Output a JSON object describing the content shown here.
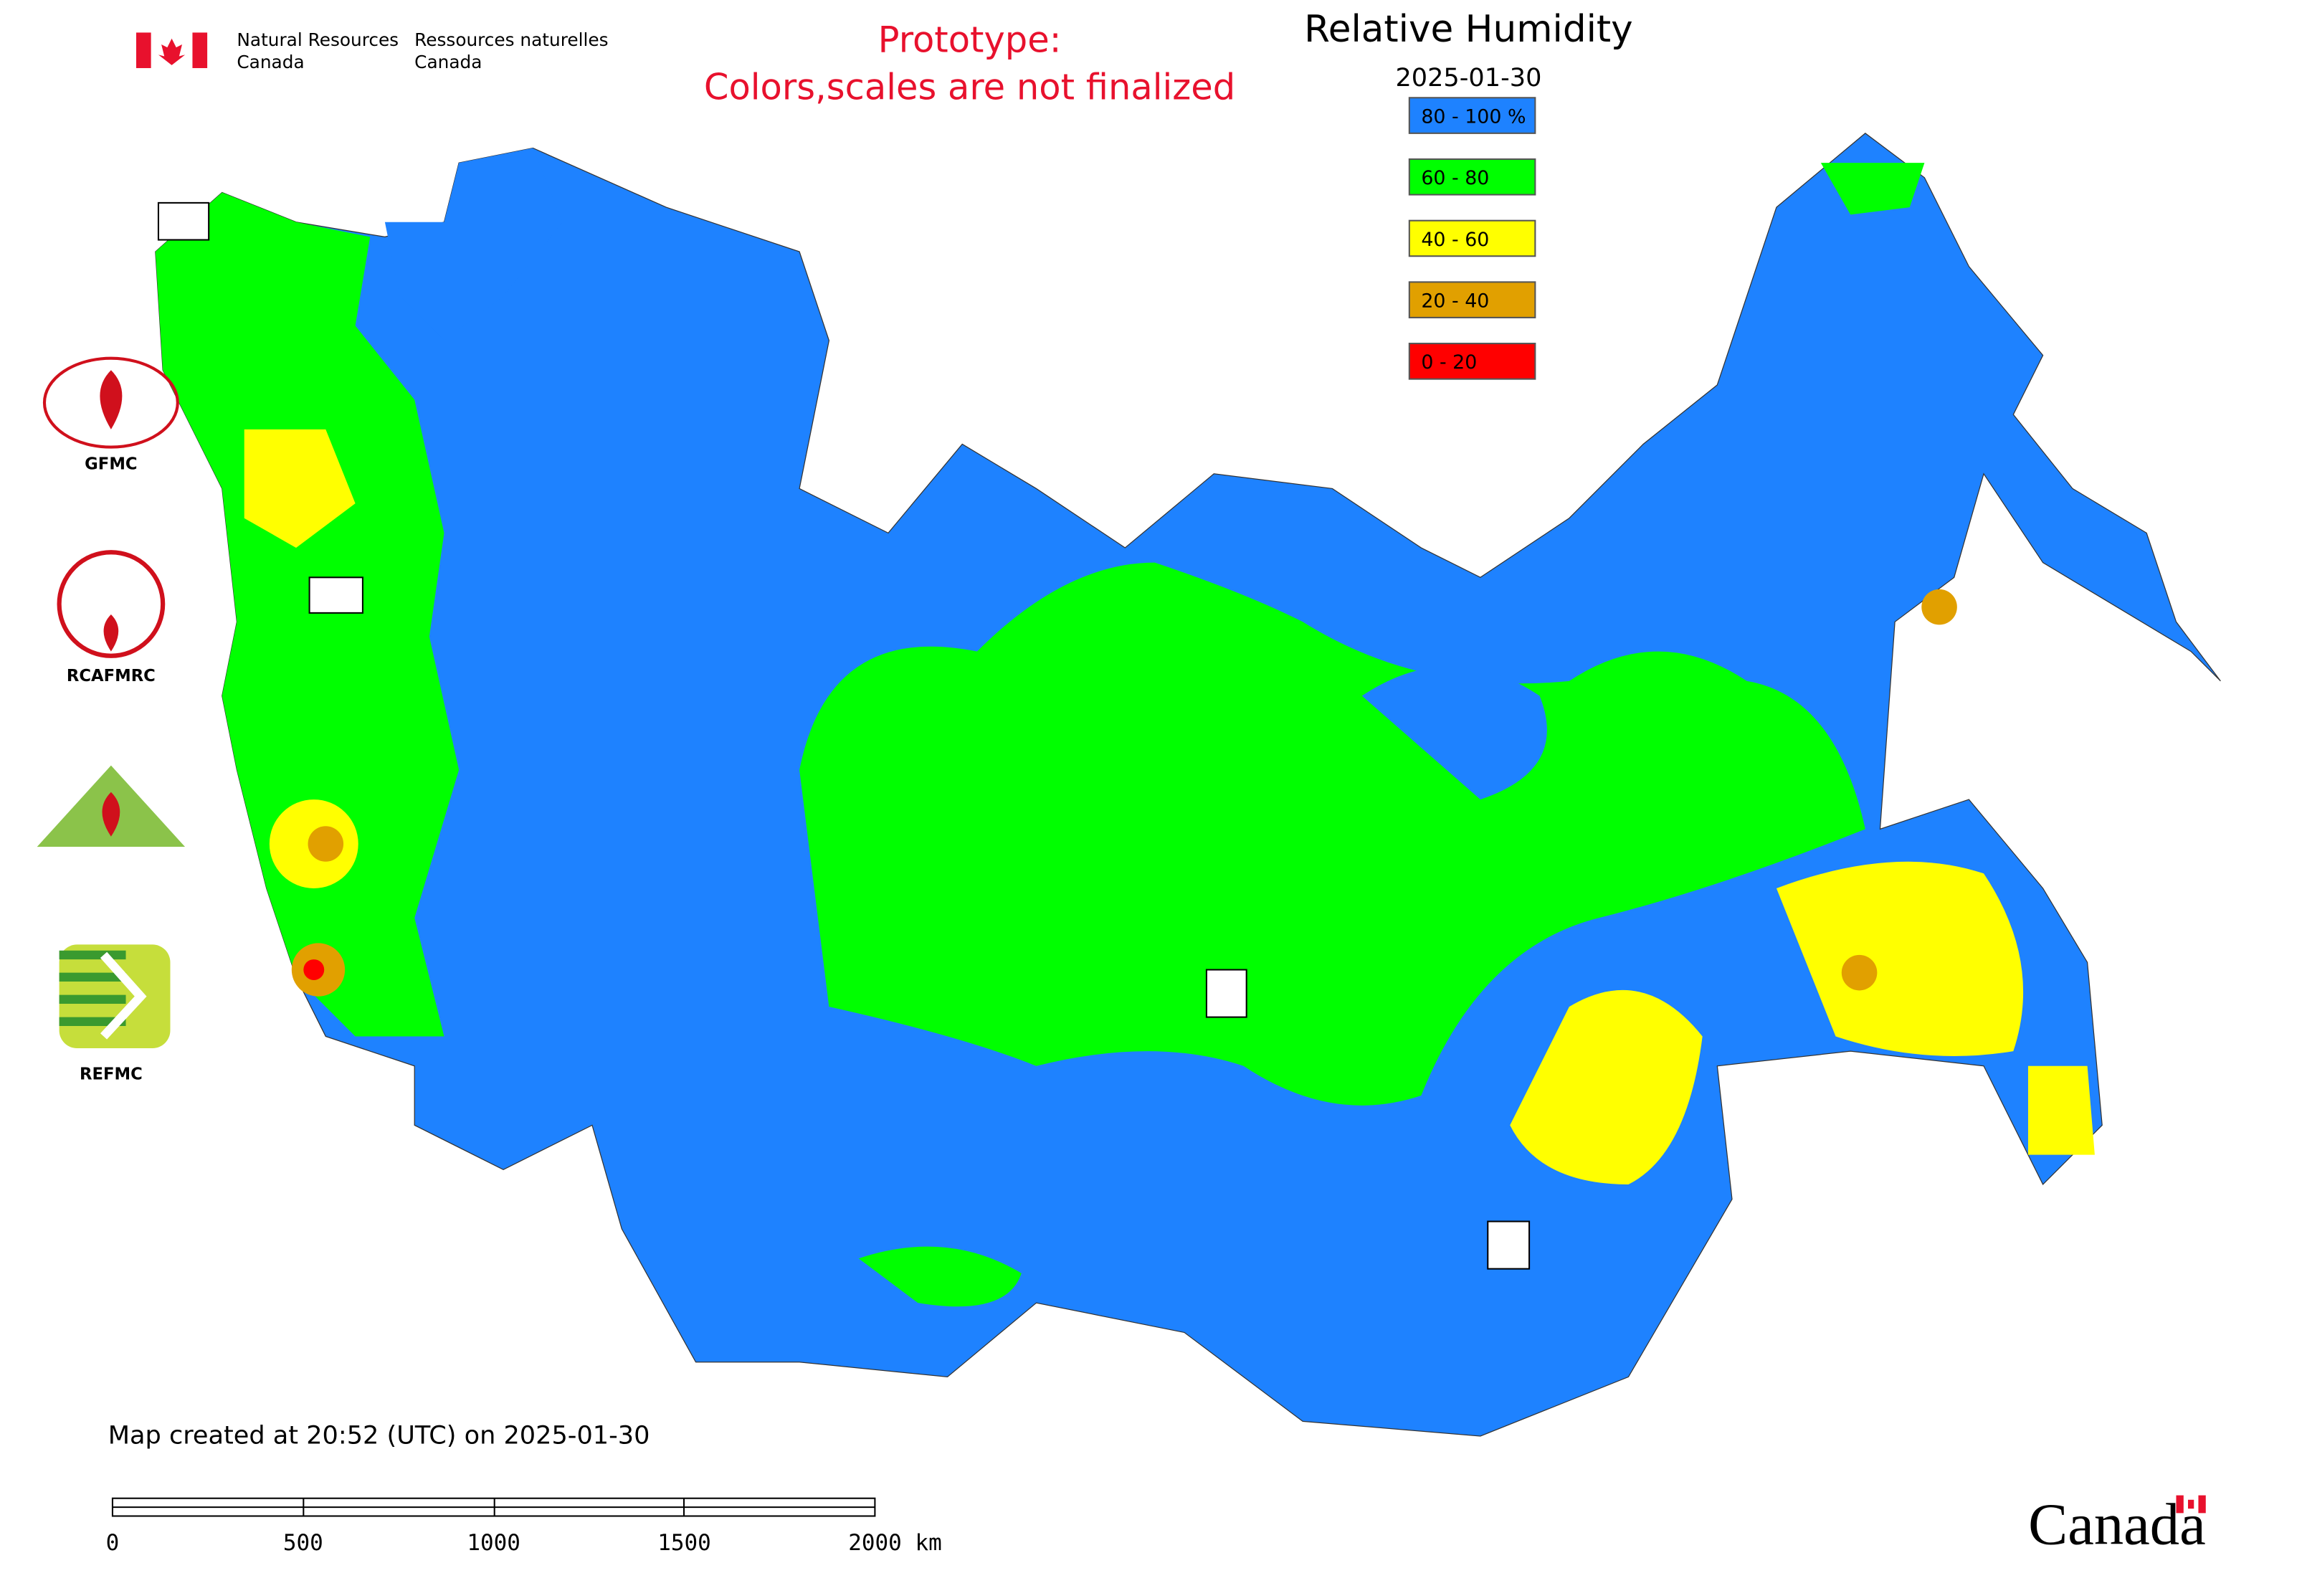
{
  "header": {
    "org_en_1": "Natural Resources",
    "org_en_2": "Canada",
    "org_fr_1": "Ressources naturelles",
    "org_fr_2": "Canada",
    "notice_1": "Prototype:",
    "notice_2": "Colors,scales are not finalized"
  },
  "map": {
    "title": "Relative Humidity",
    "date": "2025-01-30",
    "legend": [
      {
        "label": "80 - 100 %",
        "color": "#1e82ff"
      },
      {
        "label": "60 - 80",
        "color": "#00ff00"
      },
      {
        "label": "40 - 60",
        "color": "#ffff00"
      },
      {
        "label": "20 - 40",
        "color": "#e1a000"
      },
      {
        "label": "0 - 20",
        "color": "#ff0000"
      }
    ]
  },
  "logos": [
    "GFMC",
    "RCAFMRC",
    "REFMC"
  ],
  "footer": {
    "created": "Map created at 20:52 (UTC) on 2025-01-30",
    "scale_labels": [
      "0",
      "500",
      "1000",
      "1500",
      "2000 km"
    ],
    "wordmark": "Canada"
  }
}
